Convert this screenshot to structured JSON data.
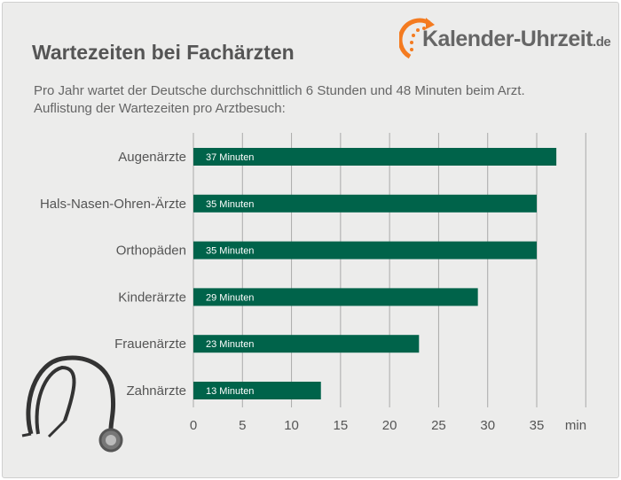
{
  "header": {
    "title": "Wartezeiten bei Fachärzten",
    "subtitle_line1": "Pro Jahr wartet der Deutsche durchschnittlich 6 Stunden und 48 Minuten beim Arzt.",
    "subtitle_line2": "Auflistung der Wartezeiten pro Arztbesuch:"
  },
  "logo": {
    "name": "Kalender-Uhrzeit",
    "tld": ".de"
  },
  "colors": {
    "bar": "#00634a",
    "accent": "#f47b20",
    "text": "#555555"
  },
  "chart_data": {
    "type": "bar",
    "orientation": "horizontal",
    "categories": [
      "Augenärzte",
      "Hals-Nasen-Ohren-Ärzte",
      "Orthopäden",
      "Kinderärzte",
      "Frauenärzte",
      "Zahnärzte"
    ],
    "values": [
      37,
      35,
      35,
      29,
      23,
      13
    ],
    "data_labels": [
      "37 Minuten",
      "35 Minuten",
      "35 Minuten",
      "29 Minuten",
      "23 Minuten",
      "13 Minuten"
    ],
    "xlabel": "min",
    "xlim": [
      0,
      40
    ],
    "xticks": [
      "0",
      "5",
      "10",
      "15",
      "20",
      "25",
      "30",
      "35"
    ],
    "grid": true
  }
}
